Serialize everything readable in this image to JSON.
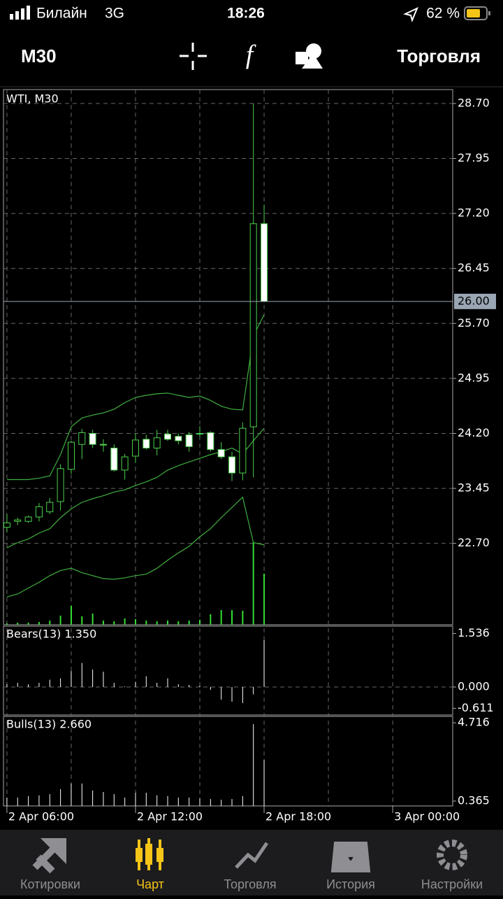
{
  "status_bar": {
    "carrier": "Билайн",
    "network": "3G",
    "time": "18:26",
    "battery": "62 %"
  },
  "toolbar": {
    "timeframe": "M30",
    "action": "Торговля"
  },
  "chart_data": {
    "type": "candlestick",
    "title": "WTI, M30",
    "x": [
      6,
      6.5,
      7,
      7.5,
      8,
      8.5,
      9,
      9.5,
      10,
      10.5,
      11,
      11.5,
      12,
      12.5,
      13,
      13.5,
      14,
      14.5,
      15,
      15.5,
      16,
      16.5,
      17,
      17.5,
      18
    ],
    "open": [
      22.92,
      23.0,
      23.0,
      23.06,
      23.13,
      23.27,
      23.71,
      24.05,
      24.2,
      24.05,
      24.0,
      23.7,
      23.89,
      24.12,
      24.0,
      24.19,
      24.16,
      24.18,
      24.19,
      24.21,
      23.98,
      23.88,
      23.66,
      24.29,
      27.06
    ],
    "high": [
      23.1,
      23.05,
      23.08,
      23.25,
      23.32,
      23.78,
      24.1,
      24.26,
      24.25,
      24.12,
      24.05,
      23.92,
      24.2,
      24.18,
      24.25,
      24.25,
      24.2,
      24.22,
      24.3,
      24.23,
      24.08,
      23.95,
      24.35,
      28.7,
      27.32
    ],
    "low": [
      22.85,
      22.95,
      22.98,
      23.0,
      23.1,
      23.15,
      23.65,
      23.85,
      24.0,
      23.95,
      23.68,
      23.57,
      23.8,
      23.98,
      23.9,
      24.1,
      24.05,
      23.95,
      24.15,
      23.95,
      23.85,
      23.55,
      23.56,
      23.6,
      25.99
    ],
    "close": [
      22.98,
      23.02,
      23.06,
      23.2,
      23.26,
      23.72,
      24.08,
      24.21,
      24.05,
      24.04,
      23.7,
      23.88,
      24.11,
      24.0,
      24.14,
      24.12,
      24.1,
      24.02,
      24.2,
      23.98,
      23.88,
      23.66,
      24.27,
      27.06,
      26.0
    ],
    "volumes": [
      2,
      3,
      3,
      4,
      6,
      13,
      27,
      12,
      16,
      6,
      5,
      9,
      8,
      6,
      5,
      6,
      5,
      6,
      7,
      15,
      21,
      21,
      20,
      118,
      73
    ],
    "bands": {
      "color": "#3fae3f",
      "upper": [
        23.57,
        23.57,
        23.57,
        23.59,
        23.62,
        23.91,
        24.29,
        24.41,
        24.45,
        24.48,
        24.53,
        24.62,
        24.69,
        24.72,
        24.74,
        24.75,
        24.72,
        24.69,
        24.71,
        24.65,
        24.57,
        24.53,
        24.52,
        25.53,
        25.82
      ],
      "middle": [
        22.64,
        22.71,
        22.76,
        22.84,
        22.9,
        23.05,
        23.17,
        23.26,
        23.31,
        23.35,
        23.4,
        23.43,
        23.49,
        23.54,
        23.6,
        23.7,
        23.76,
        23.81,
        23.86,
        23.91,
        23.95,
        24.0,
        23.92,
        24.1,
        24.27
      ],
      "lower": [
        21.97,
        22.01,
        22.09,
        22.17,
        22.26,
        22.33,
        22.36,
        22.3,
        22.26,
        22.22,
        22.21,
        22.23,
        22.26,
        22.28,
        22.36,
        22.47,
        22.57,
        22.66,
        22.79,
        22.9,
        23.05,
        23.19,
        23.33,
        22.71,
        22.68
      ]
    },
    "bull_color": "#4cd04c",
    "bear_color": "#ffffff",
    "volume_color": "#33dd33",
    "xlim": [
      5.84,
      26.8
    ],
    "xticks": [
      {
        "value": 6,
        "label": "2 Apr 06:00"
      },
      {
        "value": 12,
        "label": "2 Apr 12:00"
      },
      {
        "value": 18,
        "label": "2 Apr 18:00"
      },
      {
        "value": 24,
        "label": "3 Apr 00:00"
      }
    ],
    "ylim": [
      21.59,
      28.89
    ],
    "yticks": [
      {
        "value": 22.7,
        "label": "22.70"
      },
      {
        "value": 23.45,
        "label": "23.45"
      },
      {
        "value": 24.2,
        "label": "24.20"
      },
      {
        "value": 24.95,
        "label": "24.95"
      },
      {
        "value": 25.7,
        "label": "25.70"
      },
      {
        "value": 26.45,
        "label": "26.45"
      },
      {
        "value": 27.2,
        "label": "27.20"
      },
      {
        "value": 27.95,
        "label": "27.95"
      },
      {
        "value": 28.7,
        "label": "28.70"
      }
    ],
    "current_price": {
      "value": 26,
      "label": "26.00"
    },
    "grid": true,
    "indicators": [
      {
        "label": "Bears(13) 1.350",
        "color": "#ffffff",
        "ylim": [
          -0.803,
          1.747
        ],
        "yticks": [
          1.536,
          {
            "value": 0,
            "label": "0.000"
          },
          -0.611
        ],
        "values": [
          0.08,
          0.12,
          0.08,
          0.12,
          0.21,
          0.25,
          0.46,
          0.69,
          0.5,
          0.44,
          0.12,
          0.02,
          0.15,
          0.31,
          0.12,
          0.25,
          0.08,
          0.06,
          0.04,
          -0.08,
          -0.36,
          -0.42,
          -0.46,
          -0.21,
          1.35
        ]
      },
      {
        "label": "Bulls(13) 2.660",
        "color": "#ffffff",
        "ylim": [
          0.093,
          5.07
        ],
        "yticks": [
          4.716,
          0.365
        ],
        "values": [
          0.56,
          0.56,
          0.64,
          0.68,
          0.75,
          1.03,
          1.34,
          1.34,
          0.95,
          0.87,
          0.75,
          0.56,
          0.83,
          0.83,
          0.68,
          0.64,
          0.56,
          0.56,
          0.52,
          0.48,
          0.44,
          0.48,
          0.64,
          4.64,
          2.66
        ]
      }
    ]
  },
  "tab_bar": {
    "tabs": [
      "Котировки",
      "Чарт",
      "Торговля",
      "История",
      "Настройки"
    ],
    "active": 1,
    "active_color": "#f5c518"
  }
}
